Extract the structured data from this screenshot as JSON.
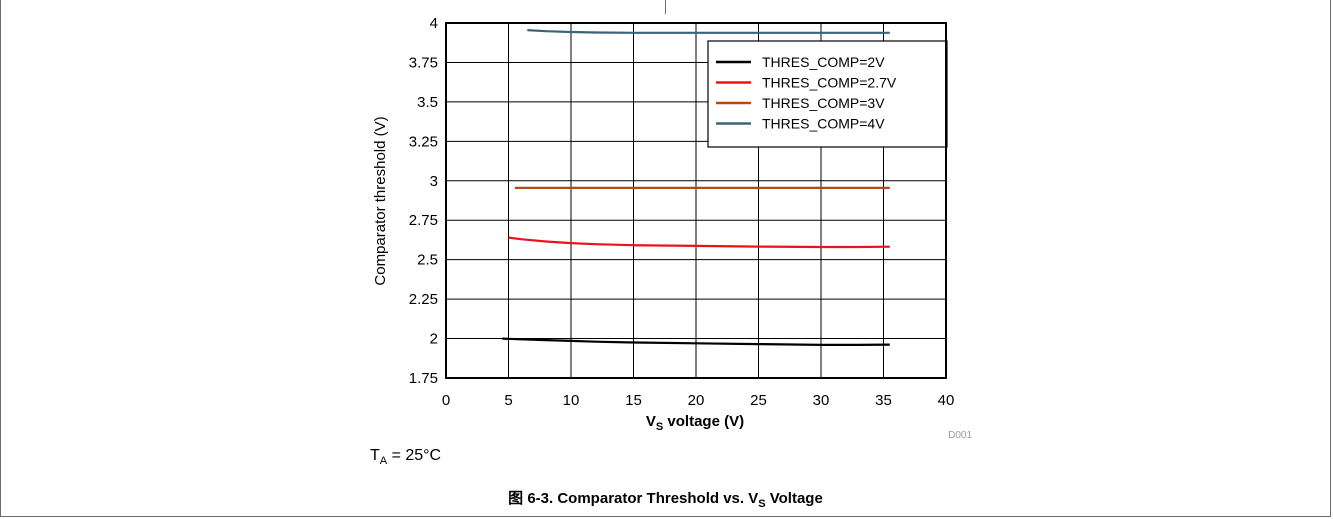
{
  "figure": {
    "caption_prefix": "图 6-3. Comparator Threshold vs. V",
    "caption_sub": "S",
    "caption_suffix": " Voltage",
    "note_main": "T",
    "note_sub": "A",
    "note_rest": " = 25°C",
    "code": "D001"
  },
  "chart_data": {
    "type": "line",
    "ylabel": "Comparator threshold (V)",
    "xlabel_main": "V",
    "xlabel_sub": "S",
    "xlabel_rest": " voltage (V)",
    "xlim": [
      0,
      40
    ],
    "ylim": [
      1.75,
      4
    ],
    "xticks": [
      0,
      5,
      10,
      15,
      20,
      25,
      30,
      35,
      40
    ],
    "yticks": [
      1.75,
      2,
      2.25,
      2.5,
      2.75,
      3,
      3.25,
      3.5,
      3.75,
      4
    ],
    "ytick_labels": [
      "1.75",
      "2",
      "2.25",
      "2.5",
      "2.75",
      "3",
      "3.25",
      "3.5",
      "3.75",
      "4"
    ],
    "grid": true,
    "legend_position": "top-right",
    "series": [
      {
        "name": "THRES_COMP=2V",
        "color": "#000000",
        "x": [
          4.5,
          6,
          8,
          10,
          12,
          15,
          20,
          25,
          30,
          33,
          35.5
        ],
        "y": [
          2.0,
          1.995,
          1.99,
          1.985,
          1.98,
          1.975,
          1.97,
          1.965,
          1.96,
          1.96,
          1.962
        ]
      },
      {
        "name": "THRES_COMP=2.7V",
        "color": "#e8141c",
        "x": [
          5,
          6,
          8,
          10,
          12,
          15,
          20,
          25,
          30,
          33,
          35.5
        ],
        "y": [
          2.64,
          2.63,
          2.615,
          2.605,
          2.598,
          2.592,
          2.587,
          2.583,
          2.58,
          2.58,
          2.582
        ]
      },
      {
        "name": "THRES_COMP=3V",
        "color": "#b14a14",
        "x": [
          5.5,
          10,
          15,
          20,
          25,
          30,
          35.5
        ],
        "y": [
          2.955,
          2.955,
          2.955,
          2.955,
          2.955,
          2.955,
          2.955
        ]
      },
      {
        "name": "THRES_COMP=4V",
        "color": "#3b6478",
        "x": [
          6.5,
          8,
          10,
          12,
          15,
          20,
          25,
          30,
          35.5
        ],
        "y": [
          3.955,
          3.948,
          3.943,
          3.94,
          3.938,
          3.938,
          3.938,
          3.938,
          3.938
        ]
      }
    ]
  }
}
